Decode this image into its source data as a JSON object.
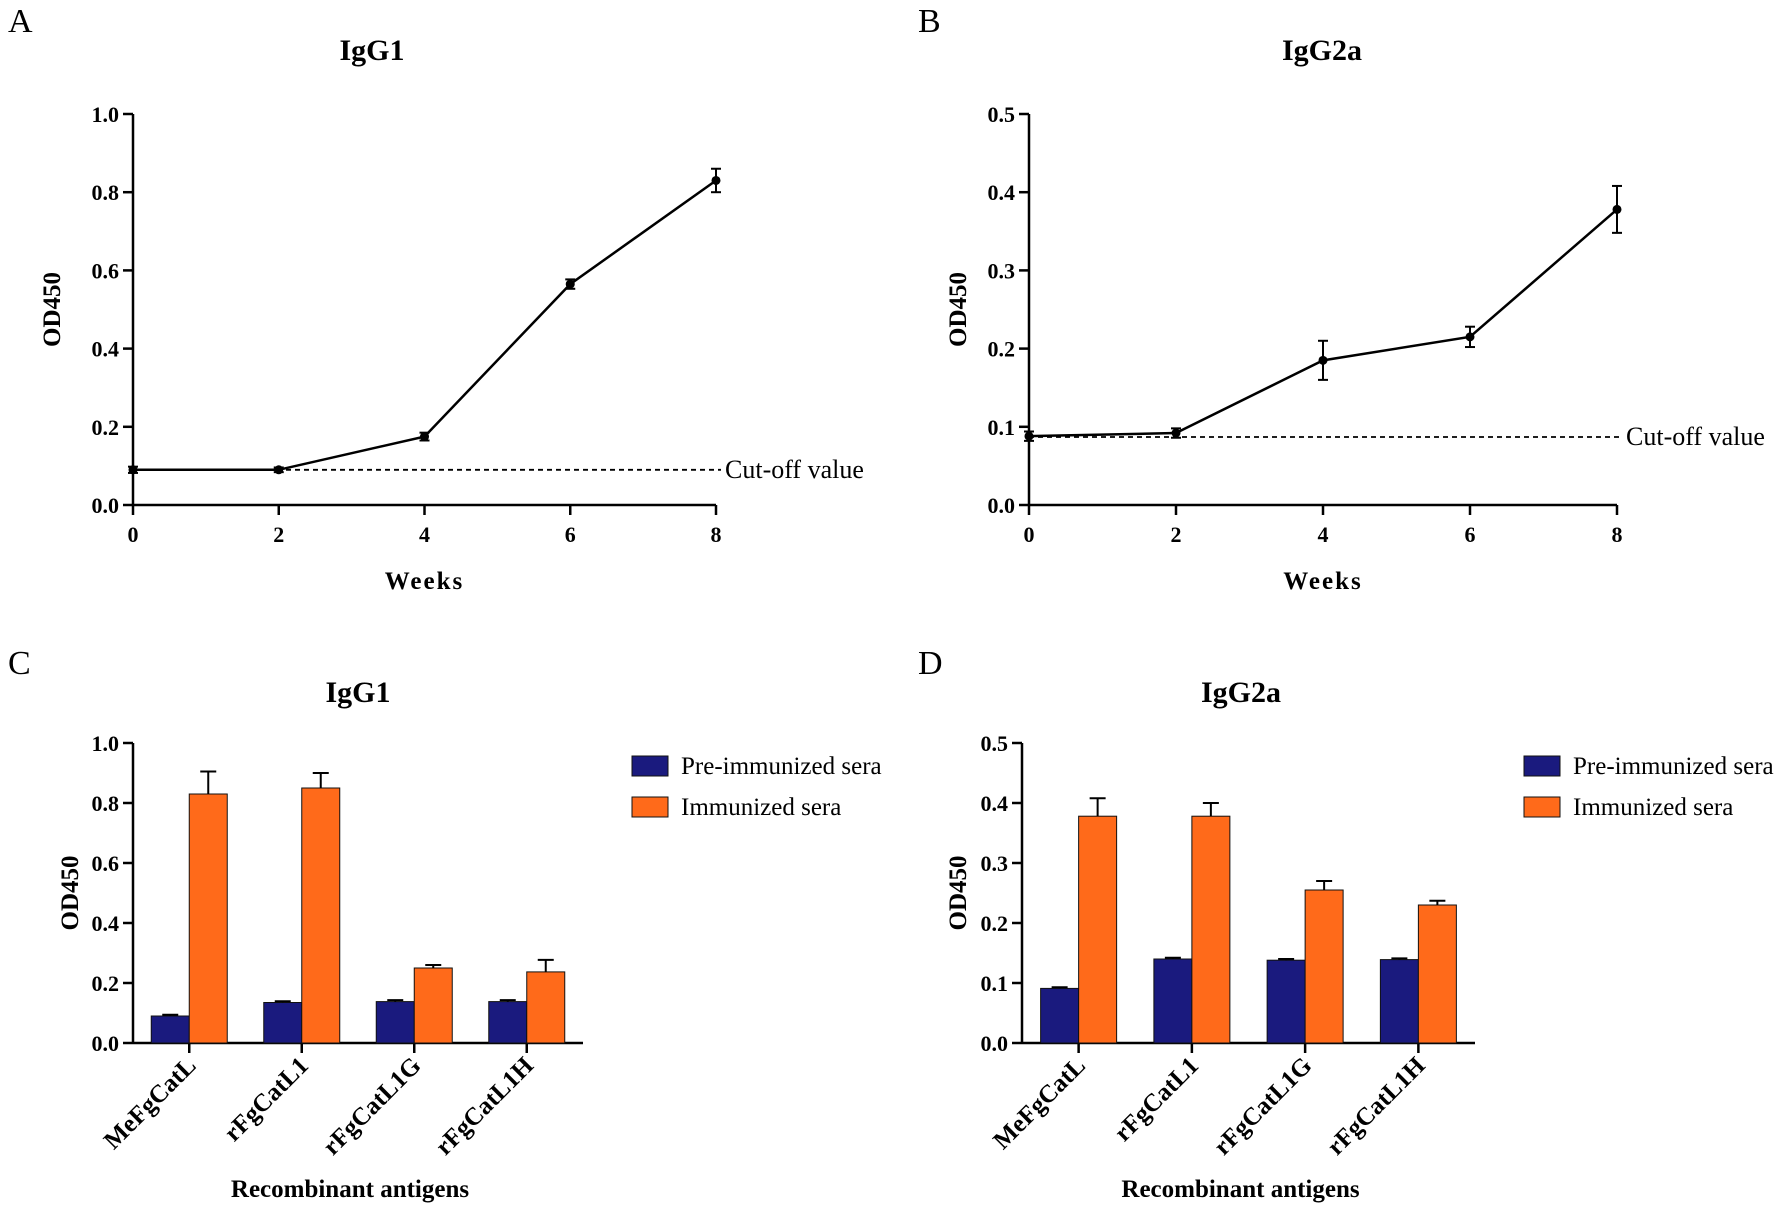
{
  "colors": {
    "pre": "#1a1a7e",
    "imm": "#ff6a1a",
    "line": "#000000"
  },
  "chart_data": [
    {
      "panel": "A",
      "type": "line",
      "title": "IgG1",
      "xlabel": "Weeks",
      "ylabel": "OD450",
      "xlim": [
        0,
        8
      ],
      "ylim": [
        0,
        1.0
      ],
      "xticks": [
        0,
        2,
        4,
        6,
        8
      ],
      "yticks": [
        0.0,
        0.2,
        0.4,
        0.6,
        0.8,
        1.0
      ],
      "ytick_labels": [
        "0.0",
        "0.2",
        "0.4",
        "0.6",
        "0.8",
        "1.0"
      ],
      "x": [
        0,
        2,
        4,
        6,
        8
      ],
      "y": [
        0.09,
        0.09,
        0.175,
        0.565,
        0.83
      ],
      "err": [
        0.008,
        0.006,
        0.01,
        0.012,
        0.03
      ],
      "cutoff": 0.09,
      "cutoff_label": "Cut-off value"
    },
    {
      "panel": "B",
      "type": "line",
      "title": "IgG2a",
      "xlabel": "Weeks",
      "ylabel": "OD450",
      "xlim": [
        0,
        8
      ],
      "ylim": [
        0,
        0.5
      ],
      "xticks": [
        0,
        2,
        4,
        6,
        8
      ],
      "yticks": [
        0.0,
        0.1,
        0.2,
        0.3,
        0.4,
        0.5
      ],
      "ytick_labels": [
        "0.0",
        "0.1",
        "0.2",
        "0.3",
        "0.4",
        "0.5"
      ],
      "x": [
        0,
        2,
        4,
        6,
        8
      ],
      "y": [
        0.088,
        0.092,
        0.185,
        0.215,
        0.378
      ],
      "err": [
        0.006,
        0.006,
        0.025,
        0.013,
        0.03
      ],
      "cutoff": 0.087,
      "cutoff_label": "Cut-off value"
    },
    {
      "panel": "C",
      "type": "bar",
      "title": "IgG1",
      "xlabel": "Recombinant antigens",
      "ylabel": "OD450",
      "ylim": [
        0,
        1.0
      ],
      "yticks": [
        0.0,
        0.2,
        0.4,
        0.6,
        0.8,
        1.0
      ],
      "ytick_labels": [
        "0.0",
        "0.2",
        "0.4",
        "0.6",
        "0.8",
        "1.0"
      ],
      "categories": [
        "MeFgCatL",
        "rFgCatL1",
        "rFgCatL1G",
        "rFgCatL1H"
      ],
      "series": [
        {
          "name": "Pre-immunized sera",
          "values": [
            0.09,
            0.135,
            0.138,
            0.138
          ],
          "err": [
            0.004,
            0.004,
            0.005,
            0.005
          ]
        },
        {
          "name": "Immunized sera",
          "values": [
            0.83,
            0.85,
            0.25,
            0.237
          ],
          "err": [
            0.075,
            0.05,
            0.01,
            0.04
          ]
        }
      ]
    },
    {
      "panel": "D",
      "type": "bar",
      "title": "IgG2a",
      "xlabel": "Recombinant antigens",
      "ylabel": "OD450",
      "ylim": [
        0,
        0.5
      ],
      "yticks": [
        0.0,
        0.1,
        0.2,
        0.3,
        0.4,
        0.5
      ],
      "ytick_labels": [
        "0.0",
        "0.1",
        "0.2",
        "0.3",
        "0.4",
        "0.5"
      ],
      "categories": [
        "MeFgCatL",
        "rFgCatL1",
        "rFgCatL1G",
        "rFgCatL1H"
      ],
      "series": [
        {
          "name": "Pre-immunized sera",
          "values": [
            0.091,
            0.14,
            0.138,
            0.139
          ],
          "err": [
            0.002,
            0.002,
            0.002,
            0.002
          ]
        },
        {
          "name": "Immunized sera",
          "values": [
            0.378,
            0.378,
            0.255,
            0.23
          ],
          "err": [
            0.03,
            0.022,
            0.015,
            0.007
          ]
        }
      ]
    }
  ]
}
